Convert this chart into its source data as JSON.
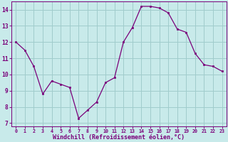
{
  "x": [
    0,
    1,
    2,
    3,
    4,
    5,
    6,
    7,
    8,
    9,
    10,
    11,
    12,
    13,
    14,
    15,
    16,
    17,
    18,
    19,
    20,
    21,
    22,
    23
  ],
  "y": [
    12.0,
    11.5,
    10.5,
    8.8,
    9.6,
    9.4,
    9.2,
    7.3,
    7.8,
    8.3,
    9.5,
    9.8,
    12.0,
    12.9,
    14.2,
    14.2,
    14.1,
    13.8,
    12.8,
    12.6,
    11.3,
    10.6,
    10.5,
    10.2
  ],
  "line_color": "#7a007a",
  "marker_color": "#7a007a",
  "bg_color": "#c8eaea",
  "grid_color": "#a0cccc",
  "axis_color": "#7a007a",
  "xlabel": "Windchill (Refroidissement éolien,°C)",
  "ylim": [
    6.8,
    14.5
  ],
  "xlim": [
    -0.5,
    23.5
  ],
  "yticks": [
    7,
    8,
    9,
    10,
    11,
    12,
    13,
    14
  ],
  "xticks": [
    0,
    1,
    2,
    3,
    4,
    5,
    6,
    7,
    8,
    9,
    10,
    11,
    12,
    13,
    14,
    15,
    16,
    17,
    18,
    19,
    20,
    21,
    22,
    23
  ],
  "xlabel_fontsize": 6.0,
  "xtick_fontsize": 4.8,
  "ytick_fontsize": 5.8
}
